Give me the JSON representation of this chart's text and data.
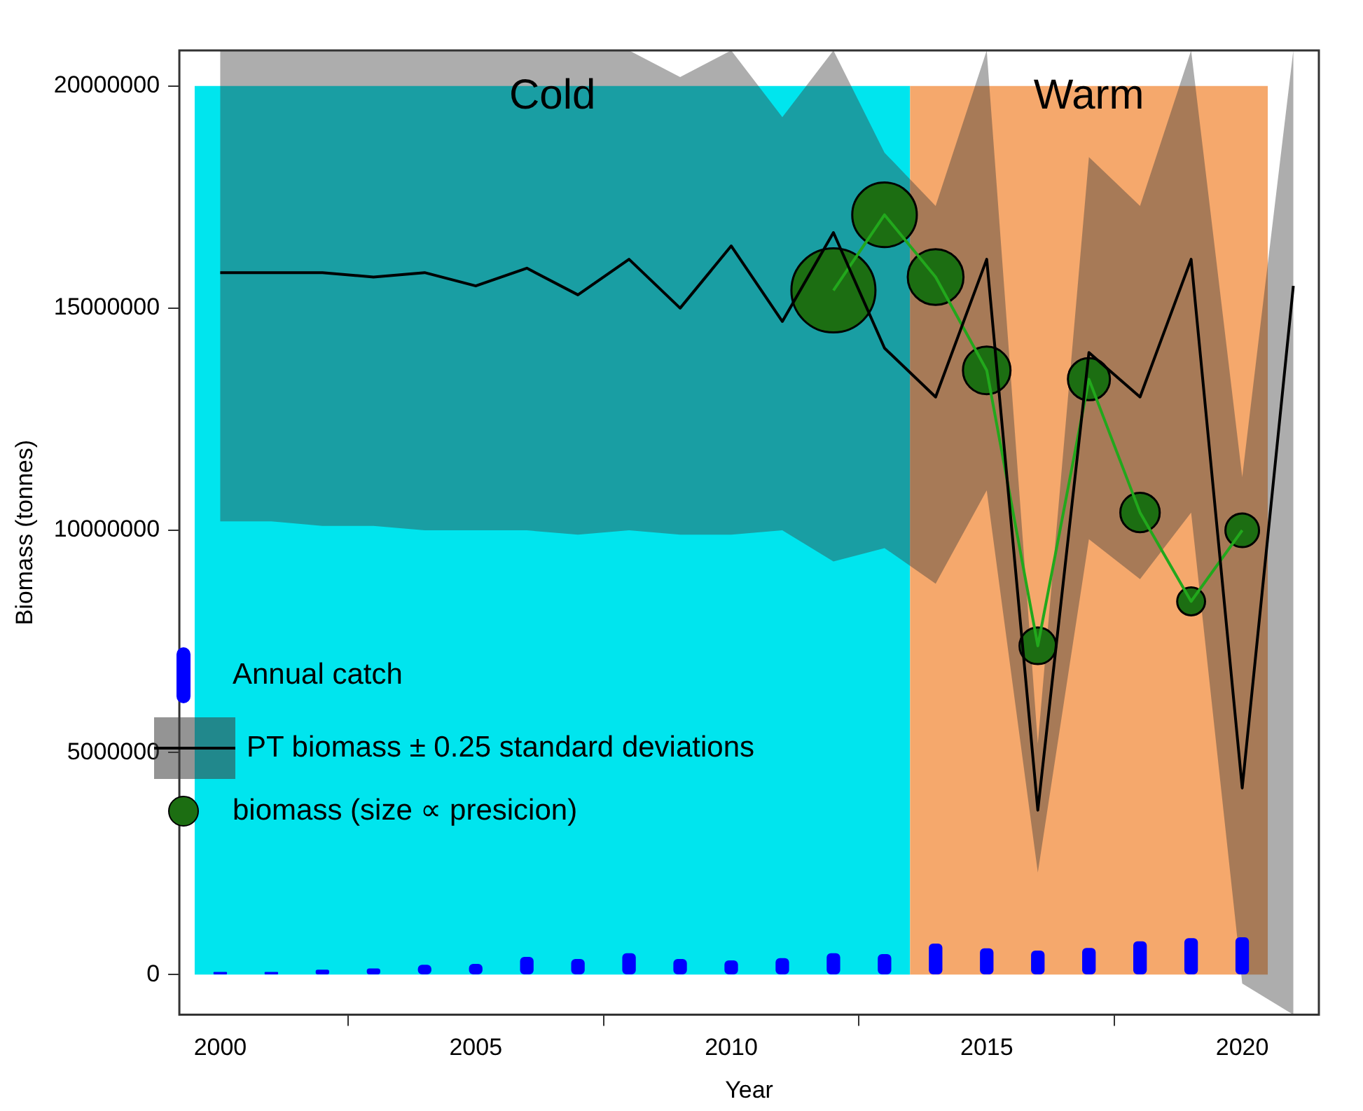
{
  "chart_data": {
    "type": "line",
    "xlabel": "Year",
    "ylabel": "Biomass (tonnes)",
    "x": [
      2000,
      2001,
      2002,
      2003,
      2004,
      2005,
      2006,
      2007,
      2008,
      2009,
      2010,
      2011,
      2012,
      2013,
      2014,
      2015,
      2016,
      2017,
      2018,
      2019,
      2020,
      2021
    ],
    "xlim": [
      1999.2,
      2021.5
    ],
    "xticks": [
      2000,
      2005,
      2010,
      2015,
      2020
    ],
    "ylim": [
      -900000,
      20800000
    ],
    "yticks": [
      0,
      5000000,
      10000000,
      15000000,
      20000000
    ],
    "grid": false,
    "legend": "bottom left",
    "bands": [
      {
        "axis": "x",
        "from": 1999.5,
        "to": 2013.5,
        "label": "Cold",
        "color": "#00e5ee"
      },
      {
        "axis": "x",
        "from": 2013.5,
        "to": 2020.5,
        "label": "Warm",
        "color": "#f5a86c"
      }
    ],
    "series": [
      {
        "name": "Annual catch",
        "type": "bar",
        "color": "#0000ff",
        "x": [
          2000,
          2001,
          2002,
          2003,
          2004,
          2005,
          2006,
          2007,
          2008,
          2009,
          2010,
          2011,
          2012,
          2013,
          2014,
          2015,
          2016,
          2017,
          2018,
          2019,
          2020
        ],
        "values": [
          50000,
          50000,
          100000,
          130000,
          210000,
          230000,
          390000,
          340000,
          470000,
          340000,
          310000,
          360000,
          470000,
          450000,
          690000,
          580000,
          530000,
          590000,
          740000,
          810000,
          830000
        ]
      },
      {
        "name": "PT biomass ± 0.25 standard deviations",
        "type": "line",
        "color": "#000000",
        "values": [
          15800000,
          15800000,
          15800000,
          15700000,
          15800000,
          15500000,
          15900000,
          15300000,
          16100000,
          15000000,
          16400000,
          14700000,
          16700000,
          14100000,
          13000000,
          16100000,
          3700000,
          14000000,
          13000000,
          16100000,
          4200000,
          15500000
        ],
        "upper": [
          20800000,
          20800000,
          20800000,
          20800000,
          20800000,
          20800000,
          20800000,
          20800000,
          20800000,
          20200000,
          20800000,
          19300000,
          20800000,
          18500000,
          17300000,
          20800000,
          5200000,
          18400000,
          17300000,
          20800000,
          11200000,
          20800000
        ],
        "lower": [
          10200000,
          10200000,
          10100000,
          10100000,
          10000000,
          10000000,
          10000000,
          9900000,
          10000000,
          9900000,
          9900000,
          10000000,
          9300000,
          9600000,
          8800000,
          10900000,
          2300000,
          9800000,
          8900000,
          10400000,
          -200000,
          -900000
        ]
      },
      {
        "color": "#22a81c",
        "x": [
          2012,
          2013,
          2014,
          2015,
          2016,
          2017,
          2018,
          2019,
          2020
        ],
        "values": [
          15400000,
          17100000,
          15700000,
          13600000,
          7400000,
          13400000,
          10400000,
          8400000,
          10000000
        ]
      },
      {
        "name": "biomass (size ∝ presicion)",
        "type": "bubble",
        "color": "#1c6e12",
        "x": [
          2012,
          2013,
          2014,
          2015,
          2016,
          2017,
          2018,
          2019,
          2020
        ],
        "values": [
          15400000,
          17100000,
          15700000,
          13600000,
          7400000,
          13400000,
          10400000,
          8400000,
          10000000
        ],
        "sizes": [
          1,
          0.59,
          0.44,
          0.32,
          0.19,
          0.25,
          0.22,
          0.11,
          0.16
        ]
      }
    ]
  }
}
